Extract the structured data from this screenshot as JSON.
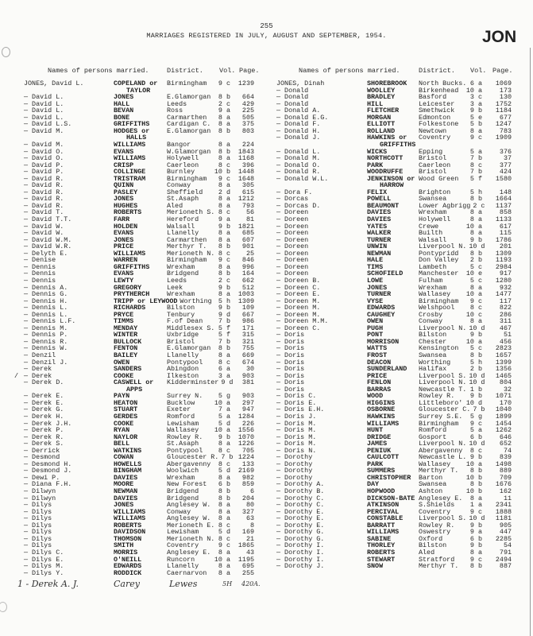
{
  "page_number": "255",
  "title": "MARRIAGES REGISTERED IN JULY, AUGUST AND SEPTEMBER, 1954.",
  "index_tab": "JON",
  "headers": {
    "names": "Names of persons married.",
    "district": "District.",
    "vol": "Vol.",
    "page": "Page."
  },
  "left_entries": [
    {
      "name": "JONES, David L.",
      "spouse": "COPELAND or",
      "spouse2": "TAYLOR",
      "district": "Birmingham",
      "vol": "9 c",
      "page": "1239"
    },
    {
      "name": "— David L.",
      "spouse": "JONES",
      "district": "E.Glamorgan",
      "vol": "8 b",
      "page": "664"
    },
    {
      "name": "— David L.",
      "spouse": "HALL",
      "district": "Leeds",
      "vol": "2 c",
      "page": "429"
    },
    {
      "name": "— David L.",
      "spouse": "BEVAN",
      "district": "Ross",
      "vol": "9 a",
      "page": "225"
    },
    {
      "name": "— David L.",
      "spouse": "BONE",
      "district": "Carmarthen",
      "vol": "8 a",
      "page": "505"
    },
    {
      "name": "— David L.S.",
      "spouse": "GRIFFITHS",
      "district": "Cardigan C.",
      "vol": "8 a",
      "page": "375"
    },
    {
      "name": "— David M.",
      "spouse": "HODGES or",
      "spouse2": "HALLS",
      "district": "E.Glamorgan",
      "vol": "8 b",
      "page": "803"
    },
    {
      "name": "— David M.",
      "spouse": "WILLIAMS",
      "district": "Bangor",
      "vol": "8 a",
      "page": "224"
    },
    {
      "name": "— David O.",
      "spouse": "EVANS",
      "district": "W.Glamorgan",
      "vol": "8 b",
      "page": "1843"
    },
    {
      "name": "— David O.",
      "spouse": "WILLIAMS",
      "district": "Holywell",
      "vol": "8 a",
      "page": "1168"
    },
    {
      "name": "— David P.",
      "spouse": "CRISP",
      "district": "Caerleon",
      "vol": "8 c",
      "page": "396"
    },
    {
      "name": "— David P.",
      "spouse": "COLLINGE",
      "district": "Burnley",
      "vol": "10 b",
      "page": "1448"
    },
    {
      "name": "— David R.",
      "spouse": "TRISTRAM",
      "district": "Birmingham",
      "vol": "9 c",
      "page": "1648"
    },
    {
      "name": "— David R.",
      "spouse": "QUINN",
      "district": "Conway",
      "vol": "8 a",
      "page": "305"
    },
    {
      "name": "— David R.",
      "spouse": "PASLEY",
      "district": "Sheffield",
      "vol": "2 d",
      "page": "615"
    },
    {
      "name": "— David R.",
      "spouse": "JONES",
      "district": "St.Asaph",
      "vol": "8 a",
      "page": "1212"
    },
    {
      "name": "— David R.",
      "spouse": "HUGHES",
      "district": "Aled",
      "vol": "8 a",
      "page": "793"
    },
    {
      "name": "— David T.",
      "spouse": "ROBERTS",
      "district": "Merioneth S.",
      "vol": "8 c",
      "page": "56"
    },
    {
      "name": "— David T.T.",
      "spouse": "FARR",
      "district": "Hereford",
      "vol": "9 a",
      "page": "81"
    },
    {
      "name": "— David W.",
      "spouse": "HOLDEN",
      "district": "Walsall",
      "vol": "9 b",
      "page": "1821"
    },
    {
      "name": "— David W.",
      "spouse": "EVANS",
      "district": "Llanelly",
      "vol": "8 a",
      "page": "685"
    },
    {
      "name": "— David W.M.",
      "spouse": "JONES",
      "district": "Carmarthen",
      "vol": "8 a",
      "page": "607"
    },
    {
      "name": "— David W.R.",
      "spouse": "PRICE",
      "district": "Merthyr T.",
      "vol": "8 b",
      "page": "901"
    },
    {
      "name": "— Delyth E.",
      "spouse": "WILLIAMS",
      "district": "Merioneth N.",
      "vol": "8 c",
      "page": "25"
    },
    {
      "name": "— Denise",
      "spouse": "WARREN",
      "district": "Birmingham",
      "vol": "9 c",
      "page": "846"
    },
    {
      "name": "— Dennis",
      "spouse": "GRIFFITHS",
      "district": "Wrexham",
      "vol": "8 a",
      "page": "996"
    },
    {
      "name": "— Dennis",
      "spouse": "EVANS",
      "district": "Bridgend",
      "vol": "8 b",
      "page": "164"
    },
    {
      "name": "— Dennis",
      "spouse": "LEWTY",
      "district": "Leeds",
      "vol": "2 c",
      "page": "662"
    },
    {
      "name": "— Dennis A.",
      "spouse": "GREGORY",
      "district": "Leek",
      "vol": "9 b",
      "page": "512"
    },
    {
      "name": "— Dennis G.",
      "spouse": "PRYTHERCH",
      "district": "Wrexham",
      "vol": "8 a",
      "page": "1003"
    },
    {
      "name": "— Dennis H.",
      "spouse": "TRIPP or LEYWOOD",
      "district": "Worthing",
      "vol": "5 h",
      "page": "1309"
    },
    {
      "name": "— Dennis L.",
      "spouse": "RICHARDS",
      "district": "Bilston",
      "vol": "9 b",
      "page": "109"
    },
    {
      "name": "— Dennis L.",
      "spouse": "PRYCE",
      "district": "Tenbury",
      "vol": "9 d",
      "page": "667"
    },
    {
      "name": "— Dennis L.F.",
      "spouse": "TIMMS",
      "district": "F.of Dean",
      "vol": "7 b",
      "page": "986"
    },
    {
      "name": "— Dennis M.",
      "spouse": "MENDAY",
      "district": "Middlesex S.",
      "vol": "5 f",
      "page": "171"
    },
    {
      "name": "— Dennis P.",
      "spouse": "WINTER",
      "district": "Uxbridge",
      "vol": "5 f",
      "page": "315"
    },
    {
      "name": "— Dennis R.",
      "spouse": "BULLOCK",
      "district": "Bristol",
      "vol": "7 b",
      "page": "321"
    },
    {
      "name": "— Dennis W.",
      "spouse": "FENTON",
      "district": "E.Glamorgan",
      "vol": "8 b",
      "page": "755"
    },
    {
      "name": "— Denzil",
      "spouse": "BAILEY",
      "district": "Llanelly",
      "vol": "8 a",
      "page": "669"
    },
    {
      "name": "— Denzil J.",
      "spouse": "OWEN",
      "district": "Pontypool",
      "vol": "8 c",
      "page": "674"
    },
    {
      "name": "— Derek",
      "spouse": "SANDERS",
      "district": "Abingdon",
      "vol": "6 a",
      "page": "30"
    },
    {
      "name": "— Derek",
      "spouse": "COOKE",
      "district": "Ilkeston",
      "vol": "3 a",
      "page": "903",
      "mark": "/"
    },
    {
      "name": "— Derek D.",
      "spouse": "CASWELL or",
      "spouse2": "APPS",
      "district": "Kidderminster",
      "vol": "9 d",
      "page": "381"
    },
    {
      "name": "— Derek E.",
      "spouse": "PAYN",
      "district": "Surrey N.",
      "vol": "5 g",
      "page": "903"
    },
    {
      "name": "— Derek E.",
      "spouse": "HEATON",
      "district": "Bucklow",
      "vol": "10 a",
      "page": "297"
    },
    {
      "name": "— Derek G.",
      "spouse": "STUART",
      "district": "Exeter",
      "vol": "7 a",
      "page": "947"
    },
    {
      "name": "— Derek H.",
      "spouse": "GERDES",
      "district": "Romford",
      "vol": "5 a",
      "page": "1284"
    },
    {
      "name": "— Derek J.H.",
      "spouse": "COOKE",
      "district": "Lewisham",
      "vol": "5 d",
      "page": "226"
    },
    {
      "name": "— Derek P.",
      "spouse": "RYAN",
      "district": "Wallasey",
      "vol": "10 a",
      "page": "1556"
    },
    {
      "name": "— Derek R.",
      "spouse": "NAYLOR",
      "district": "Rowley R.",
      "vol": "9 b",
      "page": "1070"
    },
    {
      "name": "— Derek S.",
      "spouse": "BELL",
      "district": "St.Asaph",
      "vol": "8 a",
      "page": "1226"
    },
    {
      "name": "— Derrick",
      "spouse": "WATKINS",
      "district": "Pontypool",
      "vol": "8 c",
      "page": "705"
    },
    {
      "name": "— Desmond",
      "spouse": "COWAN",
      "district": "Gloucester R.",
      "vol": "7 b",
      "page": "1224"
    },
    {
      "name": "— Desmond H.",
      "spouse": "HOWELLS",
      "district": "Abergavenny",
      "vol": "8 c",
      "page": "133"
    },
    {
      "name": "— Desmond J.",
      "spouse": "BINGHAM",
      "district": "Woolwich",
      "vol": "5 d",
      "page": "2169"
    },
    {
      "name": "— Dewi P.",
      "spouse": "DAVIES",
      "district": "Wrexham",
      "vol": "8 a",
      "page": "982"
    },
    {
      "name": "— Diana F.H.",
      "spouse": "MOORE",
      "district": "New Forest",
      "vol": "6 b",
      "page": "859"
    },
    {
      "name": "— Dilwyn",
      "spouse": "NEWMAN",
      "district": "Bridgend",
      "vol": "8 b",
      "page": "6"
    },
    {
      "name": "— Dilwyn",
      "spouse": "DAVIES",
      "district": "Bridgend",
      "vol": "8 b",
      "page": "204"
    },
    {
      "name": "— Dilys",
      "spouse": "JONES",
      "district": "Anglesey W.",
      "vol": "8 a",
      "page": "80"
    },
    {
      "name": "— Dilys",
      "spouse": "WILLIAMS",
      "district": "Conway",
      "vol": "8 a",
      "page": "327"
    },
    {
      "name": "— Dilys",
      "spouse": "WILLIAMS",
      "district": "Anglesey W.",
      "vol": "8 a",
      "page": "63"
    },
    {
      "name": "— Dilys",
      "spouse": "ROBERTS",
      "district": "Merioneth E.",
      "vol": "8 c",
      "page": "8"
    },
    {
      "name": "— Dilys",
      "spouse": "DAVIDSON",
      "district": "Lewisham",
      "vol": "5 d",
      "page": "169"
    },
    {
      "name": "— Dilys",
      "spouse": "THOMSON",
      "district": "Merioneth N.",
      "vol": "8 c",
      "page": "21"
    },
    {
      "name": "— Dilys",
      "spouse": "SMITH",
      "district": "Coventry",
      "vol": "9 c",
      "page": "1865"
    },
    {
      "name": "— Dilys C.",
      "spouse": "MORRIS",
      "district": "Anglesey E.",
      "vol": "8 a",
      "page": "43"
    },
    {
      "name": "— Dilys E.",
      "spouse": "O'NEILL",
      "district": "Runcorn",
      "vol": "10 a",
      "page": "1195"
    },
    {
      "name": "— Dilys M.",
      "spouse": "EDWARDS",
      "district": "Llanelly",
      "vol": "8 a",
      "page": "695"
    },
    {
      "name": "— Dilys Y.",
      "spouse": "RODDICK",
      "district": "Caernarvon",
      "vol": "8 a",
      "page": "255"
    }
  ],
  "handwritten_entry": {
    "name": "1 - Derek A. J.",
    "spouse": "Carey",
    "district": "Lewes",
    "vol": "5H",
    "page": "420A."
  },
  "right_entries": [
    {
      "name": "JONES, Dinah",
      "spouse": "SHOREBROOK",
      "district": "North Bucks.",
      "vol": "6 a",
      "page": "1069"
    },
    {
      "name": "— Donald",
      "spouse": "WOOLLEY",
      "district": "Birkenhead",
      "vol": "10 a",
      "page": "173"
    },
    {
      "name": "— Donald",
      "spouse": "BRADLEY",
      "district": "Basford",
      "vol": "3 c",
      "page": "130"
    },
    {
      "name": "— Donald",
      "spouse": "HILL",
      "district": "Leicester",
      "vol": "3 a",
      "page": "1752"
    },
    {
      "name": "— Donald A.",
      "spouse": "FLETCHER",
      "district": "Smethwick",
      "vol": "9 b",
      "page": "1184"
    },
    {
      "name": "— Donald E.G.",
      "spouse": "MORGAN",
      "district": "Edmonton",
      "vol": "5 e",
      "page": "677"
    },
    {
      "name": "— Donald F.",
      "spouse": "ELLIOTT",
      "district": "Folkestone",
      "vol": "5 b",
      "page": "1247"
    },
    {
      "name": "— Donald H.",
      "spouse": "ROLLAND",
      "district": "Newtown",
      "vol": "8 a",
      "page": "783"
    },
    {
      "name": "— Donald J.",
      "spouse": "HAWKINS or",
      "spouse2": "GRIFFITHS",
      "district": "Coventry",
      "vol": "9 c",
      "page": "1909"
    },
    {
      "name": "— Donald L.",
      "spouse": "WICKS",
      "district": "Epping",
      "vol": "5 a",
      "page": "376"
    },
    {
      "name": "— Donald M.",
      "spouse": "NORTHCOTT",
      "district": "Bristol",
      "vol": "7 b",
      "page": "37"
    },
    {
      "name": "— Donald O.",
      "spouse": "PARK",
      "district": "Caerleon",
      "vol": "8 c",
      "page": "377"
    },
    {
      "name": "— Donald R.",
      "spouse": "WOODRUFFE",
      "district": "Bristol",
      "vol": "7 b",
      "page": "424"
    },
    {
      "name": "— Donald W.L.",
      "spouse": "JENKINSON or",
      "spouse2": "HARROW",
      "district": "Wood Green",
      "vol": "5 f",
      "page": "1580"
    },
    {
      "name": "— Dora F.",
      "spouse": "FELIX",
      "district": "Brighton",
      "vol": "5 h",
      "page": "148"
    },
    {
      "name": "— Dorcas",
      "spouse": "POWELL",
      "district": "Swansea",
      "vol": "8 b",
      "page": "1664"
    },
    {
      "name": "— Dorcas D.",
      "spouse": "BEAUMONT",
      "district": "Lower Agbrigg",
      "vol": "2 c",
      "page": "1137"
    },
    {
      "name": "— Doreen",
      "spouse": "DAVIES",
      "district": "Wrexham",
      "vol": "8 a",
      "page": "858"
    },
    {
      "name": "— Doreen",
      "spouse": "DAVIES",
      "district": "Holywell",
      "vol": "8 a",
      "page": "1133"
    },
    {
      "name": "— Doreen",
      "spouse": "YATES",
      "district": "Crewe",
      "vol": "10 a",
      "page": "617"
    },
    {
      "name": "— Doreen",
      "spouse": "WALKER",
      "district": "Builth",
      "vol": "8 a",
      "page": "115"
    },
    {
      "name": "— Doreen",
      "spouse": "TURNER",
      "district": "Walsall",
      "vol": "9 b",
      "page": "1786"
    },
    {
      "name": "— Doreen",
      "spouse": "UNWIN",
      "district": "Liverpool N.",
      "vol": "10 d",
      "page": "201"
    },
    {
      "name": "— Doreen",
      "spouse": "NEWMAN",
      "district": "Pontypridd",
      "vol": "8 b",
      "page": "1309"
    },
    {
      "name": "— Doreen",
      "spouse": "HALE",
      "district": "Don Valley",
      "vol": "2 b",
      "page": "1193"
    },
    {
      "name": "— Doreen",
      "spouse": "TIMS",
      "district": "Lambeth",
      "vol": "5 c",
      "page": "2984"
    },
    {
      "name": "— Doreen",
      "spouse": "SCHOFIELD",
      "district": "Manchester",
      "vol": "10 e",
      "page": "917"
    },
    {
      "name": "— Doreen B.",
      "spouse": "LOWE",
      "district": "Fulham",
      "vol": "5 c",
      "page": "1280"
    },
    {
      "name": "— Doreen C.",
      "spouse": "JONES",
      "district": "Wrexham",
      "vol": "8 a",
      "page": "932"
    },
    {
      "name": "— Doreen E.",
      "spouse": "TURNER",
      "district": "Wallasey",
      "vol": "10 a",
      "page": "1477"
    },
    {
      "name": "— Doreen M.",
      "spouse": "VYSE",
      "district": "Birmingham",
      "vol": "9 c",
      "page": "117"
    },
    {
      "name": "— Doreen M.",
      "spouse": "EDWARDS",
      "district": "Welshpool",
      "vol": "8 c",
      "page": "822"
    },
    {
      "name": "— Doreen M.",
      "spouse": "CAUGHEY",
      "district": "Crosby",
      "vol": "10 c",
      "page": "286"
    },
    {
      "name": "— Doreen M.M.",
      "spouse": "OWEN",
      "district": "Conway",
      "vol": "8 a",
      "page": "311"
    },
    {
      "name": "— Doreen C.",
      "spouse": "PUGH",
      "district": "Liverpool N.",
      "vol": "10 d",
      "page": "467"
    },
    {
      "name": "— Doris",
      "spouse": "PONT",
      "district": "Bilston",
      "vol": "9 b",
      "page": "51"
    },
    {
      "name": "— Doris",
      "spouse": "MORRISON",
      "district": "Chester",
      "vol": "10 a",
      "page": "456"
    },
    {
      "name": "— Doris",
      "spouse": "WATTS",
      "district": "Kensington",
      "vol": "5 c",
      "page": "2823"
    },
    {
      "name": "— Doris",
      "spouse": "FROST",
      "district": "Swansea",
      "vol": "8 b",
      "page": "1657"
    },
    {
      "name": "— Doris",
      "spouse": "DEACON",
      "district": "Worthing",
      "vol": "5 h",
      "page": "1399"
    },
    {
      "name": "— Doris",
      "spouse": "SUNDERLAND",
      "district": "Halifax",
      "vol": "2 b",
      "page": "1356"
    },
    {
      "name": "— Doris",
      "spouse": "PRICE",
      "district": "Liverpool S.",
      "vol": "10 d",
      "page": "1465"
    },
    {
      "name": "— Doris",
      "spouse": "FENLON",
      "district": "Liverpool N.",
      "vol": "10 d",
      "page": "804"
    },
    {
      "name": "— Doris",
      "spouse": "BARRAS",
      "district": "Newcastle T.",
      "vol": "1 b",
      "page": "32"
    },
    {
      "name": "— Doris C.",
      "spouse": "WOOD",
      "district": "Rowley R.",
      "vol": "9 b",
      "page": "1071"
    },
    {
      "name": "— Doris E.",
      "spouse": "HIGGINS",
      "district": "Littleboro'",
      "vol": "10 d",
      "page": "170"
    },
    {
      "name": "— Doris E.H.",
      "spouse": "OSBORNE",
      "district": "Gloucester C.",
      "vol": "7 b",
      "page": "1040"
    },
    {
      "name": "— Doris J.",
      "spouse": "HAWKINS",
      "district": "Surrey S.E.",
      "vol": "5 g",
      "page": "1899"
    },
    {
      "name": "— Doris M.",
      "spouse": "WILLIAMS",
      "district": "Birmingham",
      "vol": "9 c",
      "page": "1454"
    },
    {
      "name": "— Doris M.",
      "spouse": "HUNT",
      "district": "Romford",
      "vol": "5 a",
      "page": "1262"
    },
    {
      "name": "— Doris M.",
      "spouse": "DRIDGE",
      "district": "Gosport",
      "vol": "6 b",
      "page": "646"
    },
    {
      "name": "— Doris M.",
      "spouse": "JAMES",
      "district": "Liverpool N.",
      "vol": "10 d",
      "page": "652"
    },
    {
      "name": "— Doris N.",
      "spouse": "PENIUK",
      "district": "Abergavenny",
      "vol": "8 c",
      "page": "74"
    },
    {
      "name": "— Dorothy",
      "spouse": "CAULCOTT",
      "district": "Newcastle L.",
      "vol": "9 b",
      "page": "839"
    },
    {
      "name": "— Dorothy",
      "spouse": "PARK",
      "district": "Wallasey",
      "vol": "10 a",
      "page": "1498"
    },
    {
      "name": "— Dorothy",
      "spouse": "SUMMERS",
      "district": "Merthyr T.",
      "vol": "8 b",
      "page": "889"
    },
    {
      "name": "— Dorothy",
      "spouse": "CHRISTOPHER",
      "district": "Barton",
      "vol": "10 b",
      "page": "709"
    },
    {
      "name": "— Dorothy A.",
      "spouse": "DAY",
      "district": "Swansea",
      "vol": "8 b",
      "page": "1676"
    },
    {
      "name": "— Dorothy B.",
      "spouse": "HOPWOOD",
      "district": "Ashton",
      "vol": "10 b",
      "page": "162"
    },
    {
      "name": "— Dorothy C.",
      "spouse": "DICKSON-BATE",
      "district": "Anglesey E.",
      "vol": "8 a",
      "page": "11"
    },
    {
      "name": "— Dorothy C.",
      "spouse": "ATKINSON",
      "district": "S.Shields",
      "vol": "1 a",
      "page": "2341"
    },
    {
      "name": "— Dorothy E.",
      "spouse": "PERCIVAL",
      "district": "Coventry",
      "vol": "9 c",
      "page": "1888"
    },
    {
      "name": "— Dorothy E.",
      "spouse": "CONSTABLE",
      "district": "Liverpool S.",
      "vol": "10 d",
      "page": "1181"
    },
    {
      "name": "— Dorothy E.",
      "spouse": "BARRATT",
      "district": "Rowley R.",
      "vol": "9 b",
      "page": "905"
    },
    {
      "name": "— Dorothy G.",
      "spouse": "WILLIAMS",
      "district": "Oswestry",
      "vol": "9 a",
      "page": "447"
    },
    {
      "name": "— Dorothy G.",
      "spouse": "SABINE",
      "district": "Oxford",
      "vol": "6 b",
      "page": "2285"
    },
    {
      "name": "— Dorothy I.",
      "spouse": "THORLEY",
      "district": "Bilston",
      "vol": "9 b",
      "page": "54"
    },
    {
      "name": "— Dorothy I.",
      "spouse": "ROBERTS",
      "district": "Aled",
      "vol": "8 a",
      "page": "791"
    },
    {
      "name": "— Dorothy I.",
      "spouse": "STEWART",
      "district": "Stratford",
      "vol": "9 c",
      "page": "2494"
    },
    {
      "name": "— Dorothy J.",
      "spouse": "SNOW",
      "district": "Merthyr T.",
      "vol": "8 b",
      "page": "887"
    }
  ]
}
